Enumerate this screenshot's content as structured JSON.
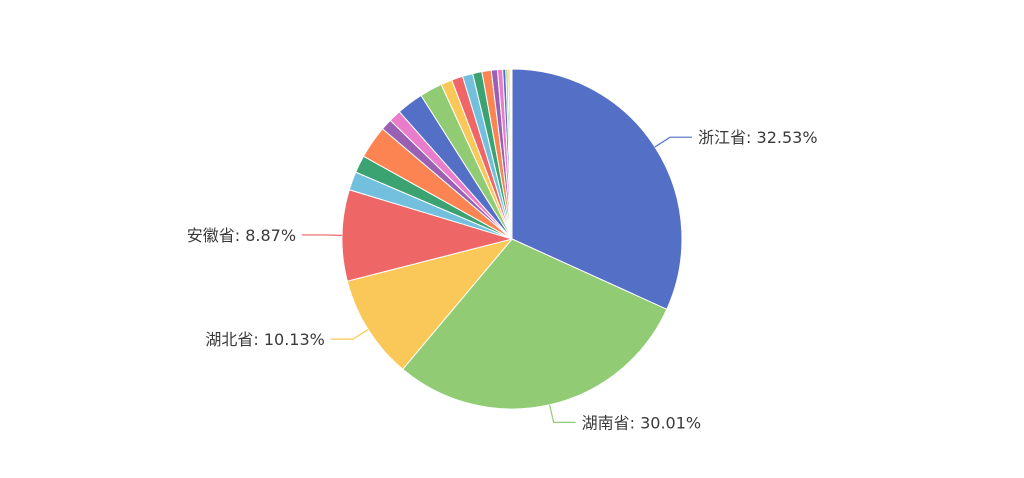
{
  "chart_data": {
    "type": "pie",
    "title": "",
    "slices": [
      {
        "label": "浙江省",
        "value": 32.53,
        "color": "#5470c6",
        "display": "浙江省: 32.53%"
      },
      {
        "label": "湖南省",
        "value": 30.01,
        "color": "#91cc75",
        "display": "湖南省: 30.01%"
      },
      {
        "label": "湖北省",
        "value": 10.13,
        "color": "#fac858",
        "display": "湖北省: 10.13%"
      },
      {
        "label": "安徽省",
        "value": 8.87,
        "color": "#ee6666",
        "display": "安徽省: 8.87%"
      },
      {
        "label": "",
        "value": 1.8,
        "color": "#73c0de"
      },
      {
        "label": "",
        "value": 1.7,
        "color": "#3ba272"
      },
      {
        "label": "",
        "value": 3.2,
        "color": "#fc8452"
      },
      {
        "label": "",
        "value": 1.1,
        "color": "#9a60b4"
      },
      {
        "label": "",
        "value": 1.2,
        "color": "#ea7ccc"
      },
      {
        "label": "",
        "value": 2.6,
        "color": "#5470c6"
      },
      {
        "label": "",
        "value": 2.2,
        "color": "#91cc75"
      },
      {
        "label": "",
        "value": 1.1,
        "color": "#fac858"
      },
      {
        "label": "",
        "value": 1.1,
        "color": "#ee6666"
      },
      {
        "label": "",
        "value": 1.0,
        "color": "#73c0de"
      },
      {
        "label": "",
        "value": 0.9,
        "color": "#3ba272"
      },
      {
        "label": "",
        "value": 0.9,
        "color": "#fc8452"
      },
      {
        "label": "",
        "value": 0.6,
        "color": "#9a60b4"
      },
      {
        "label": "",
        "value": 0.5,
        "color": "#ea7ccc"
      },
      {
        "label": "",
        "value": 0.3,
        "color": "#5470c6"
      },
      {
        "label": "",
        "value": 0.2,
        "color": "#91cc75"
      },
      {
        "label": "",
        "value": 0.2,
        "color": "#fac858"
      },
      {
        "label": "",
        "value": 0.1,
        "color": "#ee6666"
      },
      {
        "label": "",
        "value": 0.1,
        "color": "#73c0de"
      }
    ]
  }
}
